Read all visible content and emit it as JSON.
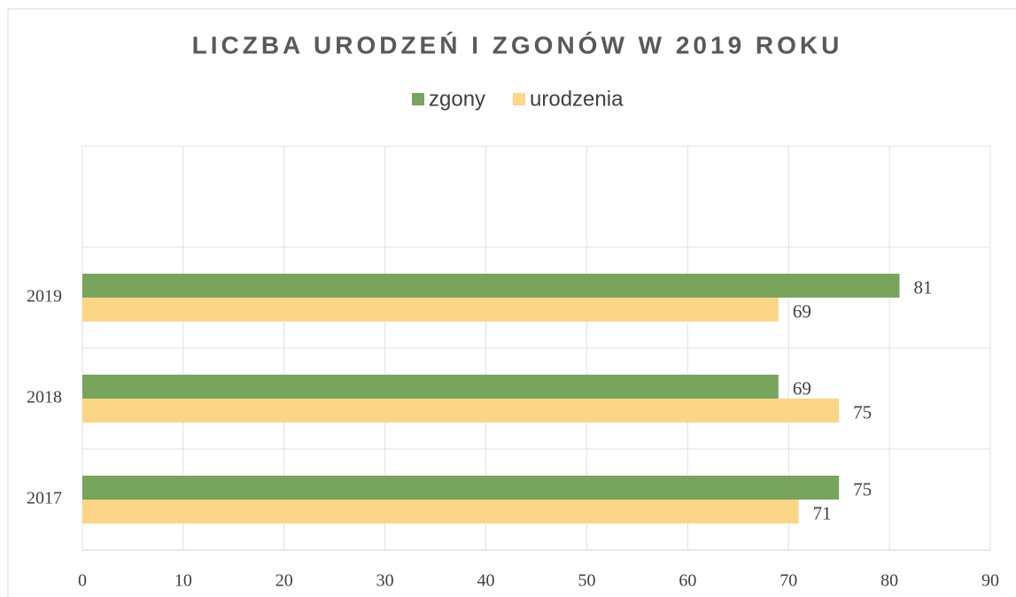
{
  "chart_data": {
    "type": "bar",
    "orientation": "horizontal",
    "title": "LICZBA URODZEŃ I ZGONÓW W 2019 ROKU",
    "categories": [
      "2017",
      "2018",
      "2019",
      null
    ],
    "series": [
      {
        "name": "zgony",
        "color": "#77a55c",
        "values": [
          75,
          69,
          81,
          null
        ]
      },
      {
        "name": "urodzenia",
        "color": "#fdd587",
        "values": [
          71,
          75,
          69,
          null
        ]
      }
    ],
    "xlim": [
      0,
      90
    ],
    "xticks": [
      0,
      10,
      20,
      30,
      40,
      50,
      60,
      70,
      80,
      90
    ],
    "grid": true,
    "legend": "top"
  }
}
